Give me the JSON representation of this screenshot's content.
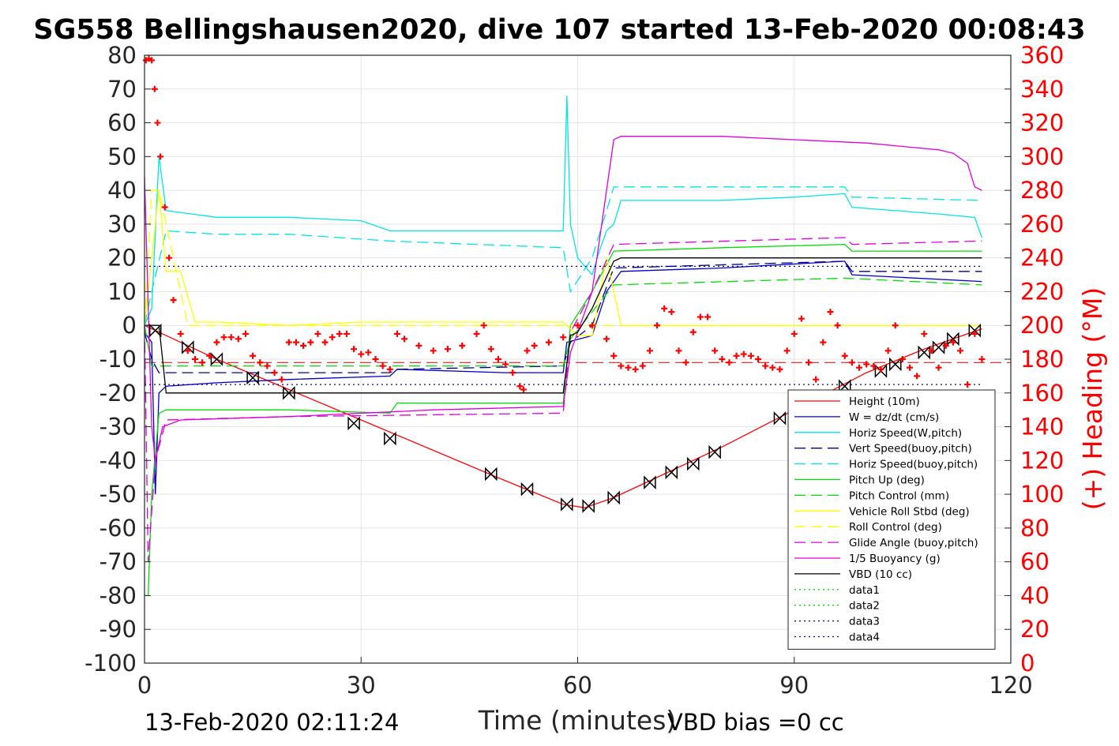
{
  "chart_data": {
    "type": "line",
    "title": "SG558 Bellingshausen2020, dive 107 started 13-Feb-2020 00:08:43",
    "xlabel": "Time (minutes)",
    "ylabel": "",
    "y2label": "(+) Heading (°M)",
    "xlim": [
      0,
      120
    ],
    "ylim": [
      -100,
      80
    ],
    "y2lim": [
      0,
      360
    ],
    "x_ticks": [
      0,
      30,
      60,
      90,
      120
    ],
    "y_ticks": [
      80,
      70,
      60,
      50,
      40,
      30,
      20,
      10,
      0,
      -10,
      -20,
      -30,
      -40,
      -50,
      -60,
      -70,
      -80,
      -90,
      -100
    ],
    "y2_ticks": [
      360,
      340,
      320,
      300,
      280,
      260,
      240,
      220,
      200,
      180,
      160,
      140,
      120,
      100,
      80,
      60,
      40,
      20,
      0
    ],
    "grid": true,
    "legend_position": "bottom-right",
    "colors": {
      "red": "#ff0000",
      "blue": "#0000cc",
      "cyan": "#00e5e5",
      "navy": "#00008b",
      "green": "#00dd00",
      "yellow": "#ffff00",
      "magenta": "#dd00dd",
      "black": "#000000"
    },
    "series": [
      {
        "name": "Height (10m)",
        "color": "#ff0000",
        "style": "solid",
        "x": [
          0,
          10,
          20,
          30,
          40,
          50,
          58,
          61,
          65,
          70,
          80,
          90,
          100,
          108,
          112,
          116
        ],
        "y": [
          0,
          -10,
          -19,
          -28,
          -37,
          -46,
          -53,
          -54,
          -51,
          -46,
          -36,
          -25,
          -14,
          -7,
          -4,
          -1
        ]
      },
      {
        "name": "W = dz/dt (cm/s)",
        "color": "#0000cc",
        "style": "solid",
        "x": [
          0,
          1,
          1.5,
          2,
          3,
          10,
          20,
          34,
          35,
          50,
          58,
          58.5,
          62,
          64,
          66,
          80,
          97,
          98,
          116
        ],
        "y": [
          -2,
          -5,
          -50,
          -20,
          -18,
          -17,
          -16,
          -15,
          -13,
          -14,
          -14,
          -5,
          -3,
          10,
          16,
          17,
          19,
          15,
          13
        ]
      },
      {
        "name": "Horiz Speed(W,pitch)",
        "color": "#00e5e5",
        "style": "solid",
        "x": [
          0,
          1,
          2,
          3,
          10,
          20,
          30,
          34,
          40,
          50,
          58,
          58.5,
          59,
          60,
          62,
          63,
          64,
          65,
          66,
          80,
          90,
          97,
          98,
          110,
          115,
          116
        ],
        "y": [
          0,
          5,
          50,
          34,
          32,
          32,
          31,
          28,
          28,
          28,
          28,
          68,
          30,
          20,
          15,
          22,
          28,
          30,
          37,
          37,
          38,
          39,
          35,
          33,
          32,
          26
        ]
      },
      {
        "name": "Vert Speed(buoy,pitch)",
        "color": "#00008b",
        "style": "dashed",
        "x": [
          0,
          1,
          2,
          34,
          35,
          58,
          59,
          62,
          65,
          97,
          98,
          116
        ],
        "y": [
          -2,
          -10,
          -14,
          -14,
          -13,
          -12,
          -5,
          0,
          17,
          19,
          16,
          16
        ]
      },
      {
        "name": "Horiz Speed(buoy,pitch)",
        "color": "#00e5e5",
        "style": "dashed",
        "x": [
          0,
          1,
          3,
          10,
          20,
          34,
          58,
          59,
          62,
          65,
          80,
          97,
          98,
          116
        ],
        "y": [
          0,
          10,
          28,
          27,
          27,
          25,
          23,
          10,
          20,
          41,
          41,
          41,
          38,
          37
        ]
      },
      {
        "name": "Pitch Up (deg)",
        "color": "#00dd00",
        "style": "solid",
        "x": [
          0,
          0.5,
          1,
          2,
          3,
          20,
          34,
          35,
          58,
          59,
          62,
          65,
          80,
          97,
          98,
          116
        ],
        "y": [
          -80,
          -80,
          -50,
          -26,
          -25,
          -25,
          -26,
          -23,
          -23,
          0,
          10,
          22,
          23,
          24,
          22,
          22
        ]
      },
      {
        "name": "Pitch Control (mm)",
        "color": "#00dd00",
        "style": "dashed",
        "x": [
          0,
          1,
          2,
          58,
          59,
          65,
          97,
          116
        ],
        "y": [
          0,
          -12,
          -12,
          -12,
          -4,
          12,
          14,
          12
        ]
      },
      {
        "name": "Vehicle Roll Stbd (deg)",
        "color": "#ffff00",
        "style": "solid",
        "x": [
          0,
          1,
          2,
          3,
          5,
          7,
          10,
          20,
          30,
          40,
          50,
          58,
          60,
          62,
          64,
          66,
          80,
          100,
          116
        ],
        "y": [
          0,
          20,
          40,
          16,
          16,
          1,
          1,
          0,
          1,
          1,
          1,
          1,
          -3,
          -3,
          20,
          0,
          0,
          0,
          0
        ]
      },
      {
        "name": "Roll Control (deg)",
        "color": "#ffff00",
        "style": "dashed",
        "x": [
          0,
          1,
          2,
          6,
          10,
          20,
          40,
          60,
          80,
          100,
          116
        ],
        "y": [
          0,
          40,
          40,
          0,
          0,
          0,
          0,
          0,
          0,
          0,
          0
        ]
      },
      {
        "name": "Glide Angle (buoy,pitch)",
        "color": "#dd00dd",
        "style": "dashed",
        "x": [
          0,
          0.5,
          1.5,
          3,
          20,
          58,
          59,
          62,
          65,
          97,
          98,
          116
        ],
        "y": [
          0,
          -70,
          -40,
          -28,
          -27,
          -26,
          -2,
          10,
          24,
          26,
          24,
          25
        ]
      },
      {
        "name": "1/5 Buoyancy (g)",
        "color": "#dd00dd",
        "style": "solid",
        "x": [
          0,
          1,
          1.5,
          2.5,
          5,
          20,
          40,
          58,
          59,
          62,
          65,
          66,
          80,
          100,
          110,
          112,
          114,
          115,
          116
        ],
        "y": [
          44,
          -30,
          -40,
          -30,
          -28,
          -27,
          -25,
          -24,
          -8,
          10,
          55,
          56,
          56,
          54,
          52,
          51,
          48,
          41,
          40
        ]
      },
      {
        "name": "VBD (10 cc)",
        "color": "#000000",
        "style": "solid",
        "x": [
          0,
          2,
          3,
          58,
          59,
          60,
          62,
          65,
          66,
          116
        ],
        "y": [
          0,
          0,
          -20,
          -20,
          -3,
          -2,
          5,
          19,
          20,
          20
        ]
      },
      {
        "name": "data1",
        "color": "#00dd00",
        "style": "dotted",
        "x": [],
        "y": []
      },
      {
        "name": "data2",
        "color": "#00dd00",
        "style": "dotted",
        "x": [],
        "y": []
      },
      {
        "name": "data3",
        "color": "#00008b",
        "style": "dotted",
        "x": [
          0,
          116
        ],
        "y": [
          -17.5,
          -17.5
        ]
      },
      {
        "name": "data4",
        "color": "#00008b",
        "style": "dotted",
        "x": [
          0,
          116
        ],
        "y": [
          17.5,
          17.5
        ]
      }
    ],
    "heading": {
      "name": "(+) Heading (°M)",
      "marker": "+",
      "color": "#ff0000",
      "axis": "right",
      "x": [
        0.2,
        0.6,
        1,
        1.4,
        1.8,
        2.2,
        2.8,
        3.4,
        4,
        5,
        6,
        7,
        8,
        9,
        10,
        11,
        12,
        13,
        14,
        15,
        16,
        17,
        18,
        19,
        20,
        21,
        22,
        23,
        24,
        25,
        26,
        27,
        28,
        29,
        30,
        31,
        32,
        33,
        34,
        35,
        36,
        38,
        40,
        42,
        44,
        46,
        47,
        48,
        49,
        50,
        51,
        52,
        52.5,
        53,
        54,
        56,
        58,
        60,
        62,
        64,
        65,
        66,
        67,
        68,
        69,
        70,
        71,
        72,
        73,
        74,
        75,
        76,
        77,
        78,
        79,
        80,
        81,
        82,
        83,
        84,
        85,
        86,
        87,
        88,
        89,
        90,
        91,
        92,
        93,
        94,
        95,
        96,
        97,
        98,
        99,
        100,
        101,
        102,
        103,
        104,
        105,
        106,
        107,
        108,
        109,
        110,
        111,
        112,
        113,
        114,
        115,
        116
      ],
      "y": [
        357,
        358,
        357,
        340,
        320,
        300,
        270,
        240,
        215,
        195,
        185,
        180,
        178,
        182,
        190,
        193,
        193,
        192,
        195,
        182,
        178,
        176,
        172,
        168,
        190,
        190,
        188,
        190,
        195,
        190,
        193,
        195,
        195,
        186,
        183,
        184,
        180,
        176,
        174,
        195,
        192,
        188,
        185,
        186,
        188,
        195,
        200,
        186,
        180,
        177,
        172,
        164,
        162,
        185,
        188,
        190,
        193,
        200,
        200,
        192,
        182,
        176,
        175,
        174,
        176,
        185,
        200,
        210,
        208,
        185,
        178,
        196,
        205,
        205,
        185,
        180,
        178,
        182,
        183,
        182,
        180,
        176,
        175,
        174,
        185,
        195,
        204,
        178,
        168,
        190,
        208,
        200,
        182,
        178,
        175,
        177,
        176,
        174,
        185,
        200,
        180,
        175,
        170,
        195,
        185,
        175,
        188,
        190,
        185,
        165,
        195,
        180
      ]
    },
    "depth_markers": {
      "color": "#000000",
      "x": [
        1.5,
        6,
        10,
        15,
        20,
        29,
        34,
        48,
        53,
        58.5,
        61.5,
        65,
        70,
        73,
        76,
        79,
        88,
        97,
        102,
        104,
        108,
        110,
        112,
        115
      ],
      "y": [
        -1.5,
        -6.5,
        -10,
        -15.5,
        -20,
        -29,
        -33.5,
        -44,
        -48.5,
        -53,
        -53.5,
        -51,
        -46.5,
        -43.5,
        -41,
        -37.5,
        -27.5,
        -18,
        -13.5,
        -11.5,
        -8,
        -6.5,
        -4,
        -1.5
      ]
    },
    "reference_lines": [
      {
        "name": "heading-mean",
        "color": "#cc0000",
        "style": "dashed",
        "axis": "right",
        "y": 178
      }
    ]
  },
  "footer": {
    "timestamp": "13-Feb-2020 02:11:24",
    "vbd_bias": "VBD bias =0 cc"
  }
}
